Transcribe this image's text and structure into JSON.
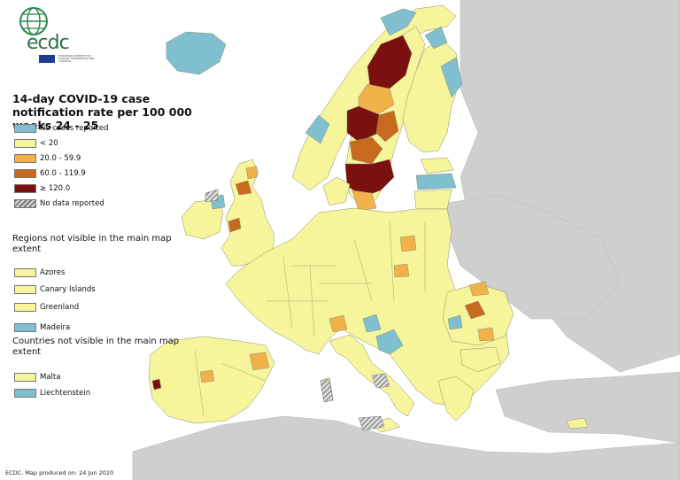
{
  "logo": {
    "text": "ecdc",
    "subtitle": "EUROPEAN CENTRE FOR DISEASE PREVENTION AND CONTROL"
  },
  "title": "14-day COVID-19 case notification rate per 100 000 weeks 24 - 25",
  "legend": [
    {
      "label": "No cases reported",
      "color": "#7fbfcf"
    },
    {
      "label": "< 20",
      "color": "#f7f59b"
    },
    {
      "label": "20.0 - 59.9",
      "color": "#f2b24a"
    },
    {
      "label": "60.0 - 119.9",
      "color": "#c86a1e"
    },
    {
      "label": "≥ 120.0",
      "color": "#7a1010"
    },
    {
      "label": "No data reported",
      "color": "hatch"
    }
  ],
  "regions_section": {
    "heading": "Regions not visible in the main map extent",
    "items": [
      {
        "label": "Azores",
        "color": "#f7f59b"
      },
      {
        "label": "Canary Islands",
        "color": "#f7f59b"
      },
      {
        "label": "Greenland",
        "color": "#f7f59b"
      },
      {
        "label": "Madeira",
        "color": "#7fbfcf"
      }
    ]
  },
  "countries_section": {
    "heading": "Countries not visible in the main map extent",
    "items": [
      {
        "label": "Malta",
        "color": "#f7f59b"
      },
      {
        "label": "Liechtenstein",
        "color": "#7fbfcf"
      }
    ]
  },
  "footer": "ECDC. Map produced on: 24 Jun 2020"
}
